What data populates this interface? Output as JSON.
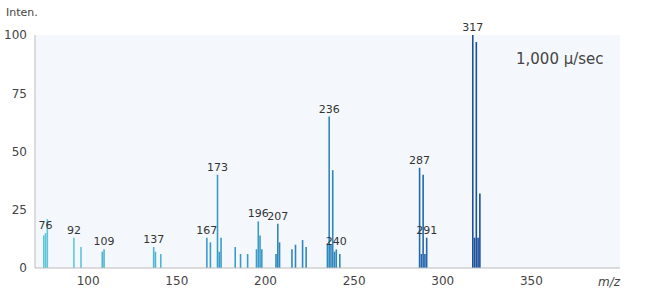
{
  "chart_data": {
    "type": "bar",
    "y_label": "Inten.",
    "x_label": "m/z",
    "annotation": "1,000 μ/sec",
    "x": [
      75,
      76,
      77,
      92,
      96,
      108,
      109,
      137,
      138,
      141,
      167,
      169,
      173,
      174,
      175,
      183,
      186,
      190,
      195,
      196,
      197,
      198,
      206,
      207,
      208,
      215,
      217,
      221,
      223,
      235,
      236,
      237,
      238,
      239,
      240,
      242,
      287,
      288,
      289,
      290,
      291,
      317,
      318,
      319,
      320,
      321
    ],
    "values": [
      14,
      15,
      21,
      13,
      9,
      7,
      8,
      9,
      7,
      6,
      13,
      11,
      40,
      7,
      13,
      9,
      6,
      6,
      8,
      20,
      14,
      8,
      6,
      19,
      11,
      8,
      10,
      12,
      9,
      10,
      65,
      10,
      42,
      7,
      8,
      6,
      43,
      6,
      40,
      6,
      13,
      100,
      13,
      97,
      13,
      32
    ],
    "peak_labels": [
      null,
      76,
      null,
      92,
      null,
      null,
      109,
      137,
      null,
      null,
      167,
      null,
      173,
      null,
      null,
      null,
      null,
      null,
      null,
      196,
      null,
      null,
      null,
      207,
      null,
      null,
      null,
      null,
      null,
      null,
      236,
      null,
      null,
      null,
      240,
      null,
      287,
      null,
      null,
      null,
      291,
      317,
      null,
      null,
      null,
      null
    ],
    "colors": [
      "#5cc6dc",
      "#5cc6dc",
      "#5cc6dc",
      "#5cc6dc",
      "#5cc6dc",
      "#4fb4d4",
      "#4fb4d4",
      "#4fb4d4",
      "#4fb4d4",
      "#4fb4d4",
      "#3a9bc8",
      "#3a9bc8",
      "#3a9bc8",
      "#3a9bc8",
      "#3a9bc8",
      "#3a9bc8",
      "#3a9bc8",
      "#3a9bc8",
      "#3a9bc8",
      "#3a9bc8",
      "#3a9bc8",
      "#3a9bc8",
      "#2f86bd",
      "#2f86bd",
      "#2f86bd",
      "#2f86bd",
      "#2f86bd",
      "#2f86bd",
      "#2f86bd",
      "#2f86bd",
      "#2f86bd",
      "#2f86bd",
      "#2f86bd",
      "#2f86bd",
      "#2f86bd",
      "#2f86bd",
      "#2467ad",
      "#2467ad",
      "#2467ad",
      "#2467ad",
      "#2467ad",
      "#1d4f9a",
      "#1d4f9a",
      "#1d4f9a",
      "#1d4f9a",
      "#1d4f9a"
    ],
    "xlim": [
      70,
      400
    ],
    "xticks": [
      100,
      150,
      200,
      250,
      300,
      350
    ],
    "ylim": [
      0,
      100
    ],
    "yticks": [
      0,
      25,
      50,
      75,
      100
    ],
    "grid": false
  }
}
